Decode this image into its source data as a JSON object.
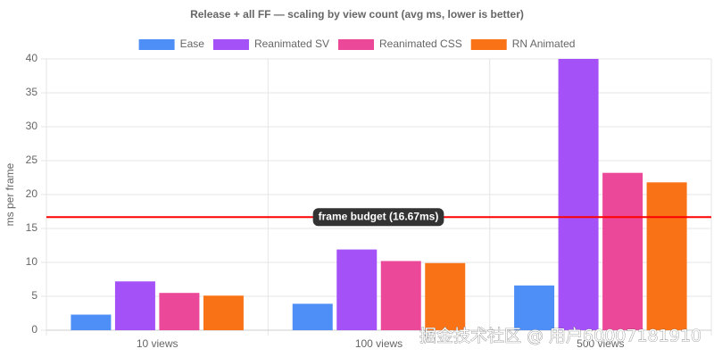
{
  "chart_data": {
    "type": "bar",
    "title": "Release + all FF — scaling by view count (avg ms, lower is better)",
    "y_label": "ms per frame",
    "categories": [
      "10 views",
      "100 views",
      "500 views"
    ],
    "series": [
      {
        "name": "Ease",
        "color": "#4e8ef7",
        "values": [
          2.3,
          3.9,
          6.6
        ]
      },
      {
        "name": "Reanimated SV",
        "color": "#a451f7",
        "values": [
          7.2,
          11.9,
          40
        ]
      },
      {
        "name": "Reanimated CSS",
        "color": "#ec4899",
        "values": [
          5.5,
          10.2,
          23.2
        ]
      },
      {
        "name": "RN Animated",
        "color": "#f97316",
        "values": [
          5.1,
          9.9,
          21.8
        ]
      }
    ],
    "ylim": [
      0,
      40
    ],
    "yticks": [
      0,
      5,
      10,
      15,
      20,
      25,
      30,
      35,
      40
    ],
    "grid": true,
    "legend": "top",
    "annotation": {
      "value": 16.67,
      "label": "frame budget (16.67ms)",
      "color": "#ff0000"
    }
  },
  "watermark": "掘金技术社区 @ 用户60007181910"
}
